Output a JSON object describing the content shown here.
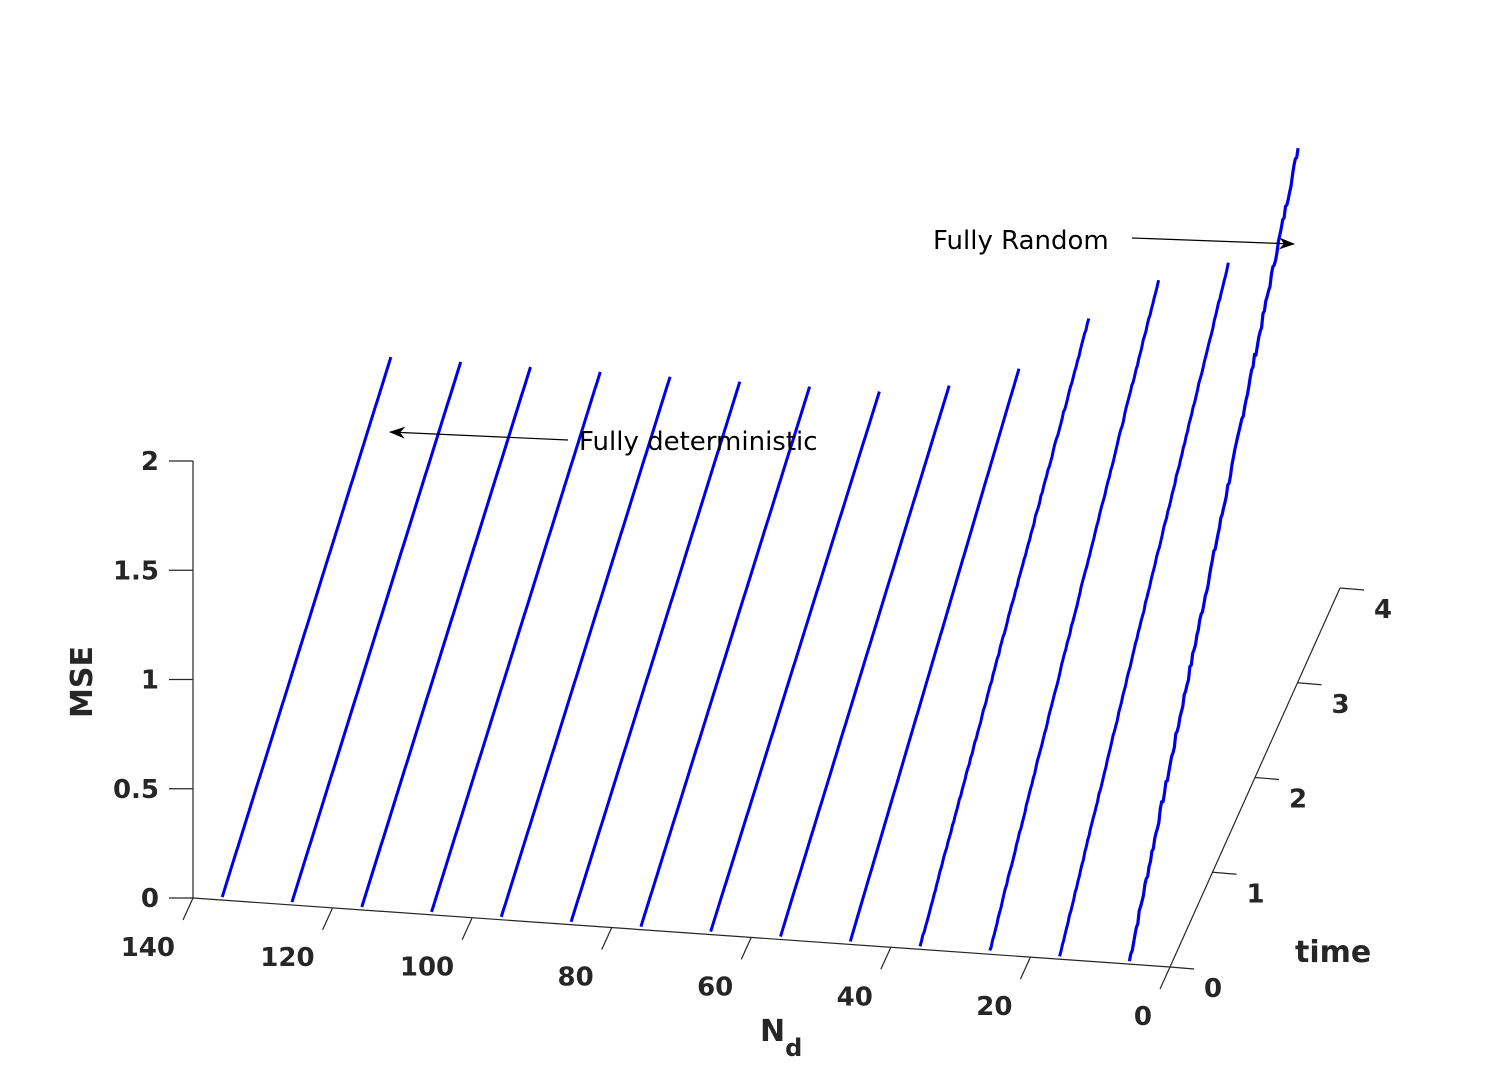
{
  "chart_data": {
    "type": "line",
    "projection": "3d",
    "x_axis": {
      "label": "N",
      "label_subscript": "d",
      "ticks": [
        0,
        20,
        40,
        60,
        80,
        100,
        120,
        140
      ],
      "range": [
        0,
        140
      ],
      "reversed": true
    },
    "y_axis": {
      "label": "time",
      "ticks": [
        0,
        1,
        2,
        3,
        4
      ],
      "range": [
        0,
        4
      ]
    },
    "z_axis": {
      "label": "MSE",
      "ticks": [
        "0",
        "0.5",
        "1",
        "1.5",
        "2"
      ],
      "tick_values": [
        0,
        0.5,
        1,
        1.5,
        2
      ],
      "range": [
        0,
        2
      ]
    },
    "line_color": "#0000e6",
    "series": [
      {
        "nd": 0,
        "mse_at_t0": 0.0,
        "mse_at_t4": 2.0,
        "noisy": true
      },
      {
        "nd": 10,
        "mse_at_t0": 0.0,
        "mse_at_t4": 1.45,
        "noisy": true
      },
      {
        "nd": 20,
        "mse_at_t0": 0.0,
        "mse_at_t4": 1.35,
        "noisy": true
      },
      {
        "nd": 30,
        "mse_at_t0": 0.0,
        "mse_at_t4": 1.15,
        "noisy": true
      },
      {
        "nd": 40,
        "mse_at_t0": 0.0,
        "mse_at_t4": 0.9,
        "noisy": false
      },
      {
        "nd": 50,
        "mse_at_t0": 0.0,
        "mse_at_t4": 0.8,
        "noisy": false
      },
      {
        "nd": 60,
        "mse_at_t0": 0.0,
        "mse_at_t4": 0.75,
        "noisy": false
      },
      {
        "nd": 70,
        "mse_at_t0": 0.0,
        "mse_at_t4": 0.75,
        "noisy": false
      },
      {
        "nd": 80,
        "mse_at_t0": 0.0,
        "mse_at_t4": 0.75,
        "noisy": false
      },
      {
        "nd": 90,
        "mse_at_t0": 0.0,
        "mse_at_t4": 0.75,
        "noisy": false
      },
      {
        "nd": 100,
        "mse_at_t0": 0.0,
        "mse_at_t4": 0.75,
        "noisy": false
      },
      {
        "nd": 110,
        "mse_at_t0": 0.0,
        "mse_at_t4": 0.75,
        "noisy": false
      },
      {
        "nd": 120,
        "mse_at_t0": 0.0,
        "mse_at_t4": 0.75,
        "noisy": false
      },
      {
        "nd": 130,
        "mse_at_t0": 0.0,
        "mse_at_t4": 0.75,
        "noisy": false
      }
    ],
    "annotations": [
      {
        "text": "Fully Random",
        "arrow": "right"
      },
      {
        "text": "Fully deterministic",
        "arrow": "left"
      }
    ],
    "grid": false
  }
}
